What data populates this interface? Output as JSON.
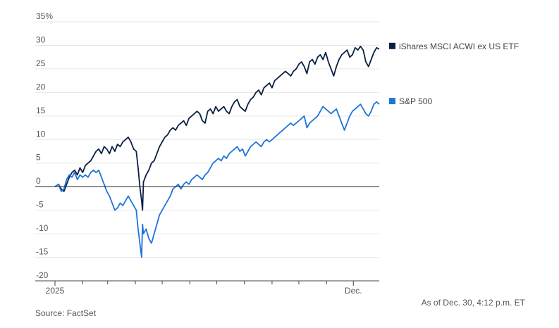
{
  "chart_data": {
    "type": "line",
    "ylim": [
      -20,
      35
    ],
    "y_ticks": [
      {
        "value": 35,
        "label": "35%"
      },
      {
        "value": 30,
        "label": "30"
      },
      {
        "value": 25,
        "label": "25"
      },
      {
        "value": 20,
        "label": "20"
      },
      {
        "value": 15,
        "label": "15"
      },
      {
        "value": 10,
        "label": "10"
      },
      {
        "value": 5,
        "label": "5"
      },
      {
        "value": 0,
        "label": "0"
      },
      {
        "value": -5,
        "label": "-5"
      },
      {
        "value": -10,
        "label": "-10"
      },
      {
        "value": -15,
        "label": "-15"
      },
      {
        "value": -20,
        "label": "-20"
      }
    ],
    "xlim": [
      "2025-01-01",
      "2025-12-30"
    ],
    "x_tick_labels": [
      {
        "date": "2025-01-01",
        "label": "2025"
      },
      {
        "date": "2025-12-01",
        "label": "Dec."
      }
    ],
    "x_minor_ticks": [
      "2025-02-01",
      "2025-03-01",
      "2025-04-01",
      "2025-05-01",
      "2025-06-01",
      "2025-07-01",
      "2025-08-01",
      "2025-09-01",
      "2025-10-01",
      "2025-11-01"
    ],
    "grid": true,
    "legend": "right, at line ends",
    "series": [
      {
        "name": "iShares MSCI ACWI ex US ETF",
        "color": "#0a1f44",
        "points": [
          [
            "2025-01-01",
            0
          ],
          [
            "2025-01-05",
            0.5
          ],
          [
            "2025-01-08",
            -0.5
          ],
          [
            "2025-01-11",
            -1
          ],
          [
            "2025-01-14",
            0.5
          ],
          [
            "2025-01-17",
            2
          ],
          [
            "2025-01-20",
            3
          ],
          [
            "2025-01-23",
            3.5
          ],
          [
            "2025-01-26",
            2.5
          ],
          [
            "2025-01-29",
            4
          ],
          [
            "2025-02-01",
            3
          ],
          [
            "2025-02-04",
            4.5
          ],
          [
            "2025-02-07",
            5
          ],
          [
            "2025-02-10",
            5.5
          ],
          [
            "2025-02-13",
            6.5
          ],
          [
            "2025-02-16",
            7.5
          ],
          [
            "2025-02-19",
            8
          ],
          [
            "2025-02-22",
            7
          ],
          [
            "2025-02-25",
            8.5
          ],
          [
            "2025-02-28",
            8
          ],
          [
            "2025-03-03",
            7
          ],
          [
            "2025-03-06",
            8.5
          ],
          [
            "2025-03-09",
            7.5
          ],
          [
            "2025-03-12",
            9
          ],
          [
            "2025-03-15",
            8.5
          ],
          [
            "2025-03-18",
            9.5
          ],
          [
            "2025-03-21",
            10
          ],
          [
            "2025-03-24",
            10.5
          ],
          [
            "2025-03-27",
            9.5
          ],
          [
            "2025-03-30",
            8
          ],
          [
            "2025-04-02",
            7.5
          ],
          [
            "2025-04-04",
            4
          ],
          [
            "2025-04-06",
            0
          ],
          [
            "2025-04-08",
            -3
          ],
          [
            "2025-04-09",
            -5
          ],
          [
            "2025-04-10",
            1
          ],
          [
            "2025-04-13",
            2.5
          ],
          [
            "2025-04-16",
            3.5
          ],
          [
            "2025-04-19",
            5
          ],
          [
            "2025-04-22",
            5.5
          ],
          [
            "2025-04-25",
            7
          ],
          [
            "2025-04-28",
            8.5
          ],
          [
            "2025-05-01",
            9.5
          ],
          [
            "2025-05-04",
            10.5
          ],
          [
            "2025-05-07",
            11
          ],
          [
            "2025-05-10",
            12
          ],
          [
            "2025-05-13",
            12.5
          ],
          [
            "2025-05-16",
            12
          ],
          [
            "2025-05-19",
            13
          ],
          [
            "2025-05-22",
            13.5
          ],
          [
            "2025-05-25",
            14
          ],
          [
            "2025-05-28",
            13
          ],
          [
            "2025-05-31",
            14.5
          ],
          [
            "2025-06-03",
            15
          ],
          [
            "2025-06-06",
            15.5
          ],
          [
            "2025-06-09",
            16
          ],
          [
            "2025-06-12",
            15.5
          ],
          [
            "2025-06-15",
            14
          ],
          [
            "2025-06-18",
            13.5
          ],
          [
            "2025-06-21",
            16
          ],
          [
            "2025-06-24",
            16.5
          ],
          [
            "2025-06-27",
            15.5
          ],
          [
            "2025-06-30",
            17
          ],
          [
            "2025-07-03",
            16
          ],
          [
            "2025-07-06",
            16.5
          ],
          [
            "2025-07-09",
            17
          ],
          [
            "2025-07-12",
            16
          ],
          [
            "2025-07-15",
            15.5
          ],
          [
            "2025-07-18",
            17
          ],
          [
            "2025-07-21",
            18
          ],
          [
            "2025-07-24",
            18.5
          ],
          [
            "2025-07-27",
            17
          ],
          [
            "2025-07-30",
            16.5
          ],
          [
            "2025-08-02",
            16
          ],
          [
            "2025-08-05",
            17.5
          ],
          [
            "2025-08-08",
            18.5
          ],
          [
            "2025-08-11",
            19
          ],
          [
            "2025-08-14",
            20
          ],
          [
            "2025-08-17",
            20.5
          ],
          [
            "2025-08-20",
            19.5
          ],
          [
            "2025-08-23",
            21
          ],
          [
            "2025-08-26",
            21.5
          ],
          [
            "2025-08-29",
            22
          ],
          [
            "2025-09-01",
            21
          ],
          [
            "2025-09-04",
            22.5
          ],
          [
            "2025-09-07",
            23
          ],
          [
            "2025-09-10",
            23.5
          ],
          [
            "2025-09-13",
            24
          ],
          [
            "2025-09-16",
            24.5
          ],
          [
            "2025-09-19",
            24
          ],
          [
            "2025-09-22",
            23.5
          ],
          [
            "2025-09-25",
            24.5
          ],
          [
            "2025-09-28",
            25
          ],
          [
            "2025-10-01",
            26
          ],
          [
            "2025-10-04",
            26.5
          ],
          [
            "2025-10-07",
            25.5
          ],
          [
            "2025-10-10",
            24
          ],
          [
            "2025-10-13",
            26.5
          ],
          [
            "2025-10-16",
            27
          ],
          [
            "2025-10-19",
            26
          ],
          [
            "2025-10-22",
            27.5
          ],
          [
            "2025-10-25",
            28
          ],
          [
            "2025-10-28",
            27
          ],
          [
            "2025-10-31",
            28.5
          ],
          [
            "2025-11-03",
            26.5
          ],
          [
            "2025-11-06",
            25
          ],
          [
            "2025-11-09",
            23.5
          ],
          [
            "2025-11-12",
            25.5
          ],
          [
            "2025-11-15",
            27
          ],
          [
            "2025-11-18",
            28
          ],
          [
            "2025-11-21",
            28.5
          ],
          [
            "2025-11-24",
            29
          ],
          [
            "2025-11-27",
            27.5
          ],
          [
            "2025-11-30",
            28
          ],
          [
            "2025-12-03",
            29.5
          ],
          [
            "2025-12-06",
            29
          ],
          [
            "2025-12-09",
            29.8
          ],
          [
            "2025-12-12",
            29
          ],
          [
            "2025-12-15",
            26.5
          ],
          [
            "2025-12-18",
            25.5
          ],
          [
            "2025-12-21",
            27
          ],
          [
            "2025-12-24",
            28.5
          ],
          [
            "2025-12-27",
            29.5
          ],
          [
            "2025-12-30",
            29.2
          ]
        ]
      },
      {
        "name": "S&P 500",
        "color": "#1f74d9",
        "points": [
          [
            "2025-01-01",
            0
          ],
          [
            "2025-01-05",
            0.5
          ],
          [
            "2025-01-08",
            -1
          ],
          [
            "2025-01-11",
            -0.5
          ],
          [
            "2025-01-14",
            1.5
          ],
          [
            "2025-01-17",
            2.5
          ],
          [
            "2025-01-20",
            2
          ],
          [
            "2025-01-23",
            3
          ],
          [
            "2025-01-26",
            1.5
          ],
          [
            "2025-01-29",
            2.5
          ],
          [
            "2025-02-01",
            2
          ],
          [
            "2025-02-04",
            2.5
          ],
          [
            "2025-02-07",
            2
          ],
          [
            "2025-02-10",
            3
          ],
          [
            "2025-02-13",
            3.5
          ],
          [
            "2025-02-16",
            3
          ],
          [
            "2025-02-19",
            3.5
          ],
          [
            "2025-02-22",
            2
          ],
          [
            "2025-02-25",
            0.5
          ],
          [
            "2025-02-28",
            -1
          ],
          [
            "2025-03-03",
            -2
          ],
          [
            "2025-03-06",
            -3.5
          ],
          [
            "2025-03-09",
            -5
          ],
          [
            "2025-03-12",
            -4.5
          ],
          [
            "2025-03-15",
            -3.5
          ],
          [
            "2025-03-18",
            -4
          ],
          [
            "2025-03-21",
            -3
          ],
          [
            "2025-03-24",
            -2
          ],
          [
            "2025-03-27",
            -3
          ],
          [
            "2025-03-30",
            -4
          ],
          [
            "2025-04-02",
            -5
          ],
          [
            "2025-04-04",
            -9
          ],
          [
            "2025-04-06",
            -12
          ],
          [
            "2025-04-08",
            -15
          ],
          [
            "2025-04-09",
            -8
          ],
          [
            "2025-04-10",
            -10
          ],
          [
            "2025-04-13",
            -9
          ],
          [
            "2025-04-16",
            -11
          ],
          [
            "2025-04-19",
            -12
          ],
          [
            "2025-04-22",
            -10
          ],
          [
            "2025-04-25",
            -8
          ],
          [
            "2025-04-28",
            -6
          ],
          [
            "2025-05-01",
            -5
          ],
          [
            "2025-05-04",
            -4
          ],
          [
            "2025-05-07",
            -3
          ],
          [
            "2025-05-10",
            -2
          ],
          [
            "2025-05-13",
            -0.5
          ],
          [
            "2025-05-16",
            0
          ],
          [
            "2025-05-19",
            0.5
          ],
          [
            "2025-05-22",
            -0.5
          ],
          [
            "2025-05-25",
            0.5
          ],
          [
            "2025-05-28",
            1
          ],
          [
            "2025-05-31",
            0.5
          ],
          [
            "2025-06-03",
            1.5
          ],
          [
            "2025-06-06",
            2
          ],
          [
            "2025-06-09",
            2.5
          ],
          [
            "2025-06-12",
            2
          ],
          [
            "2025-06-15",
            1.5
          ],
          [
            "2025-06-18",
            2.5
          ],
          [
            "2025-06-21",
            3
          ],
          [
            "2025-06-24",
            4
          ],
          [
            "2025-06-27",
            5
          ],
          [
            "2025-06-30",
            5.5
          ],
          [
            "2025-07-03",
            6
          ],
          [
            "2025-07-06",
            5.5
          ],
          [
            "2025-07-09",
            6.5
          ],
          [
            "2025-07-12",
            6
          ],
          [
            "2025-07-15",
            7
          ],
          [
            "2025-07-18",
            7.5
          ],
          [
            "2025-07-21",
            8
          ],
          [
            "2025-07-24",
            8.5
          ],
          [
            "2025-07-27",
            7.5
          ],
          [
            "2025-07-30",
            8
          ],
          [
            "2025-08-02",
            6.5
          ],
          [
            "2025-08-05",
            7.5
          ],
          [
            "2025-08-08",
            8.5
          ],
          [
            "2025-08-11",
            9
          ],
          [
            "2025-08-14",
            9.5
          ],
          [
            "2025-08-17",
            9
          ],
          [
            "2025-08-20",
            8.5
          ],
          [
            "2025-08-23",
            9.5
          ],
          [
            "2025-08-26",
            10
          ],
          [
            "2025-08-29",
            9.5
          ],
          [
            "2025-09-01",
            10
          ],
          [
            "2025-09-04",
            10.5
          ],
          [
            "2025-09-07",
            11
          ],
          [
            "2025-09-10",
            11.5
          ],
          [
            "2025-09-13",
            12
          ],
          [
            "2025-09-16",
            12.5
          ],
          [
            "2025-09-19",
            13
          ],
          [
            "2025-09-22",
            13.5
          ],
          [
            "2025-09-25",
            13
          ],
          [
            "2025-09-28",
            13.5
          ],
          [
            "2025-10-01",
            14
          ],
          [
            "2025-10-04",
            14.5
          ],
          [
            "2025-10-07",
            15
          ],
          [
            "2025-10-10",
            12.5
          ],
          [
            "2025-10-13",
            13.5
          ],
          [
            "2025-10-16",
            14
          ],
          [
            "2025-10-19",
            14.5
          ],
          [
            "2025-10-22",
            15
          ],
          [
            "2025-10-25",
            16
          ],
          [
            "2025-10-28",
            17
          ],
          [
            "2025-10-31",
            16.5
          ],
          [
            "2025-11-03",
            16
          ],
          [
            "2025-11-06",
            15.5
          ],
          [
            "2025-11-09",
            16
          ],
          [
            "2025-11-12",
            16.5
          ],
          [
            "2025-11-15",
            15
          ],
          [
            "2025-11-18",
            13.5
          ],
          [
            "2025-11-21",
            12
          ],
          [
            "2025-11-24",
            13.5
          ],
          [
            "2025-11-27",
            15
          ],
          [
            "2025-11-30",
            16
          ],
          [
            "2025-12-03",
            16.5
          ],
          [
            "2025-12-06",
            17
          ],
          [
            "2025-12-09",
            17.5
          ],
          [
            "2025-12-12",
            16.5
          ],
          [
            "2025-12-15",
            15.5
          ],
          [
            "2025-12-18",
            15
          ],
          [
            "2025-12-21",
            16
          ],
          [
            "2025-12-24",
            17.5
          ],
          [
            "2025-12-27",
            18
          ],
          [
            "2025-12-30",
            17.5
          ]
        ]
      }
    ]
  },
  "notes": {
    "as_of": "As of Dec. 30, 4:12 p.m. ET",
    "source": "Source: FactSet"
  },
  "colors": {
    "grid": "#e6e6e6",
    "zero_line": "#222222",
    "axis": "#444444"
  }
}
